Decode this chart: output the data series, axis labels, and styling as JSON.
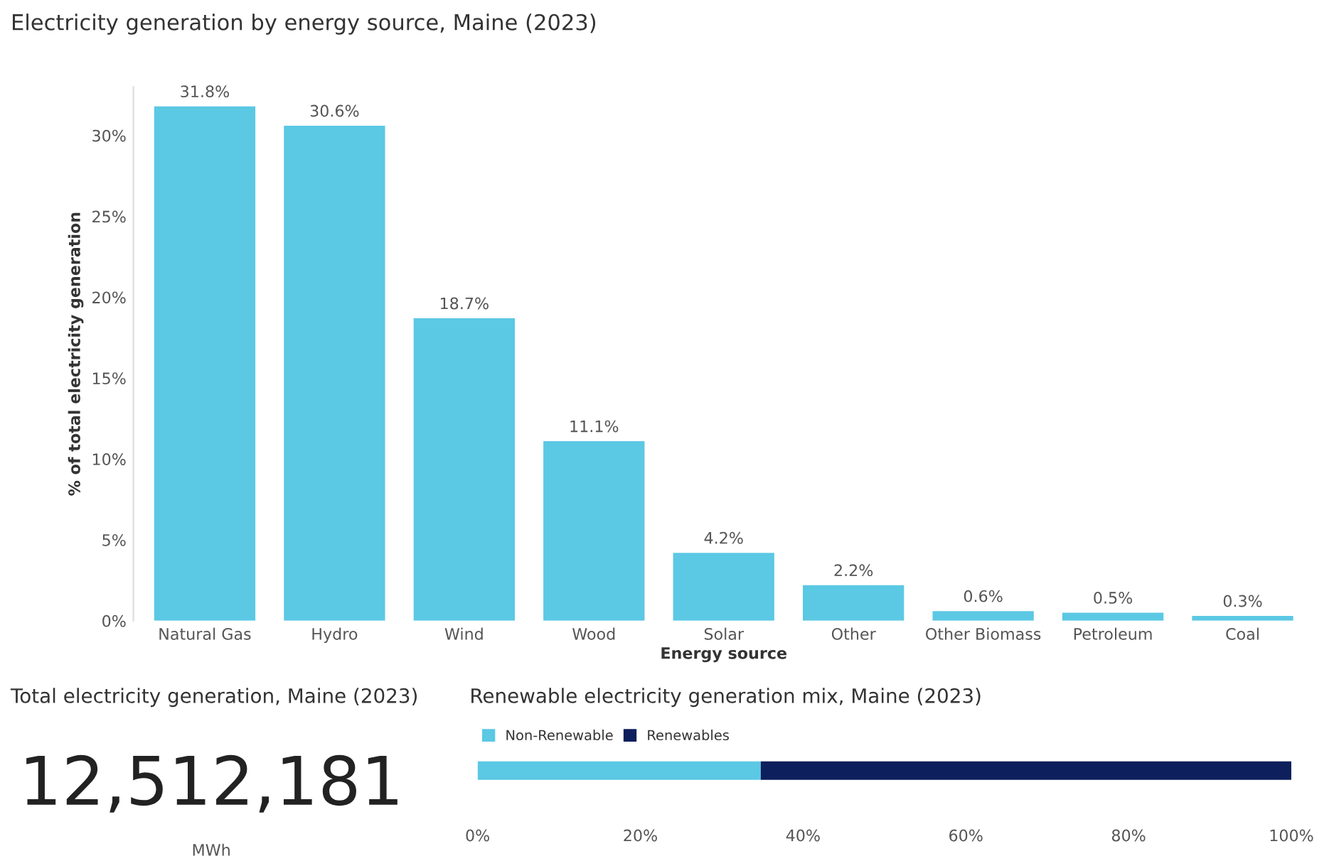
{
  "chart_data": [
    {
      "type": "bar",
      "title": "Electricity generation by energy source, Maine (2023)",
      "xlabel": "Energy source",
      "ylabel": "% of total electricity generation",
      "categories": [
        "Natural Gas",
        "Hydro",
        "Wind",
        "Wood",
        "Solar",
        "Other",
        "Other Biomass",
        "Petroleum",
        "Coal"
      ],
      "values": [
        31.8,
        30.6,
        18.7,
        11.1,
        4.2,
        2.2,
        0.6,
        0.5,
        0.3
      ],
      "color": "#5bc8e4",
      "value_labels": [
        "31.8%",
        "30.6%",
        "18.7%",
        "11.1%",
        "4.2%",
        "2.2%",
        "0.6%",
        "0.5%",
        "0.3%"
      ],
      "ylim": [
        0,
        33
      ],
      "yticks": [
        {
          "value": 0,
          "label": "0%"
        },
        {
          "value": 5,
          "label": "5%"
        },
        {
          "value": 10,
          "label": "10%"
        },
        {
          "value": 15,
          "label": "15%"
        },
        {
          "value": 20,
          "label": "20%"
        },
        {
          "value": 25,
          "label": "25%"
        },
        {
          "value": 30,
          "label": "30%"
        }
      ],
      "grid": false,
      "legend": false
    },
    {
      "type": "other",
      "title": "Total electricity generation, Maine (2023)",
      "annotations": [
        "12,512,181",
        "MWh"
      ]
    },
    {
      "type": "bar",
      "title": "Renewable electricity generation mix, Maine (2023)",
      "orientation": "horizontal",
      "stacked": true,
      "categories": [
        null
      ],
      "series": [
        {
          "name": "Non-Renewable",
          "color": "#5bc8e4",
          "values": [
            34.8
          ]
        },
        {
          "name": "Renewables",
          "color": "#0d1f5c",
          "values": [
            65.2
          ]
        }
      ],
      "xlim": [
        0,
        100
      ],
      "xticks": [
        {
          "value": 0,
          "label": "0%"
        },
        {
          "value": 20,
          "label": "20%"
        },
        {
          "value": 40,
          "label": "40%"
        },
        {
          "value": 60,
          "label": "60%"
        },
        {
          "value": 80,
          "label": "80%"
        },
        {
          "value": 100,
          "label": "100%"
        }
      ],
      "tick_labels": "x",
      "grid": false,
      "legend": "top left"
    }
  ]
}
